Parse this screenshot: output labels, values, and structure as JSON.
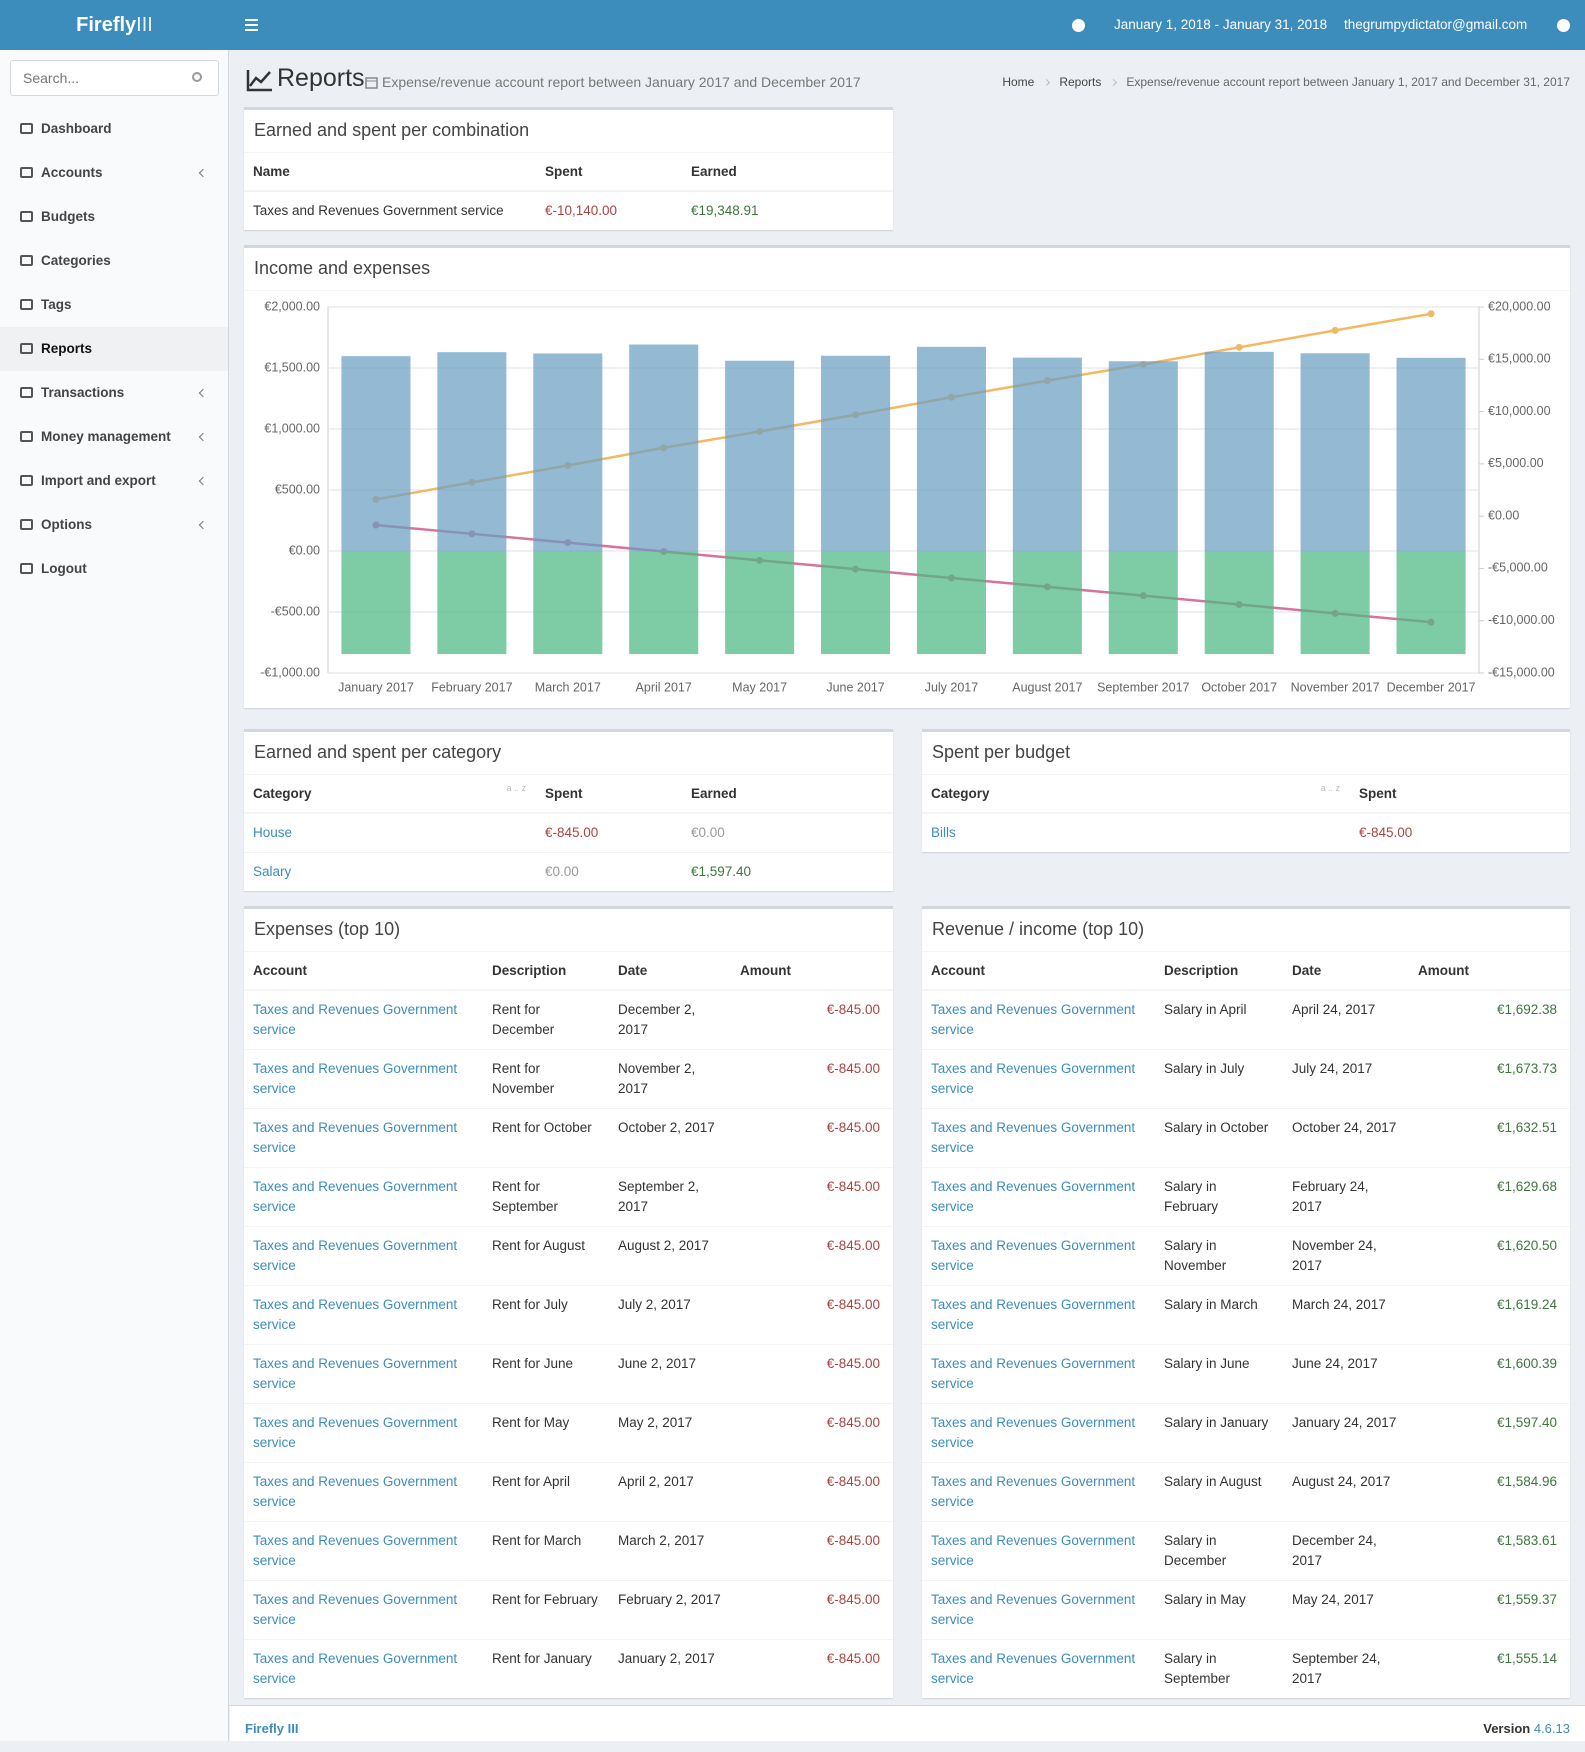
{
  "header": {
    "brand": "Firefly",
    "brand_suffix": "III",
    "date_range": "January 1, 2018 - January 31, 2018",
    "user": "thegrumpydictator@gmail.com"
  },
  "sidebar": {
    "search_placeholder": "Search...",
    "menu": [
      {
        "label": "Dashboard"
      },
      {
        "label": "Accounts",
        "submenu": true
      },
      {
        "label": "Budgets"
      },
      {
        "label": "Categories"
      },
      {
        "label": "Tags"
      },
      {
        "label": "Reports",
        "active": true
      },
      {
        "label": "Transactions",
        "submenu": true
      },
      {
        "label": "Money management",
        "submenu": true
      },
      {
        "label": "Import and export",
        "submenu": true
      },
      {
        "label": "Options",
        "submenu": true
      },
      {
        "label": "Logout"
      }
    ]
  },
  "page": {
    "title": "Reports",
    "subtitle": "Expense/revenue account report between January 2017 and December 2017",
    "breadcrumbs": [
      "Home",
      "Reports",
      "Expense/revenue account report between January 1, 2017 and December 31, 2017"
    ]
  },
  "combination": {
    "title": "Earned and spent per combination",
    "columns": [
      "Name",
      "Spent",
      "Earned"
    ],
    "rows": [
      [
        "Taxes and Revenues Government service",
        "€-10,140.00",
        "€19,348.91"
      ]
    ]
  },
  "chart_data": {
    "type": "bar",
    "title": "Income and expenses",
    "categories": [
      "January 2017",
      "February 2017",
      "March 2017",
      "April 2017",
      "May 2017",
      "June 2017",
      "July 2017",
      "August 2017",
      "September 2017",
      "October 2017",
      "November 2017",
      "December 2017"
    ],
    "series": [
      {
        "type": "bar",
        "color": "#6a9ec2",
        "values": [
          1597.4,
          1629.68,
          1619.24,
          1692.38,
          1559.37,
          1600.39,
          1673.73,
          1584.96,
          1555.14,
          1632.51,
          1620.5,
          1583.61
        ]
      },
      {
        "type": "bar",
        "color": "#4cb883",
        "values": [
          -845,
          -845,
          -845,
          -845,
          -845,
          -845,
          -845,
          -845,
          -845,
          -845,
          -845,
          -845
        ]
      },
      {
        "type": "line",
        "axis": "y2",
        "color": "#f2b965",
        "values": [
          1597.4,
          3227.08,
          4846.32,
          6538.7,
          8098.07,
          9698.46,
          11372.19,
          12957.15,
          14512.29,
          16144.8,
          17765.3,
          19348.91
        ]
      },
      {
        "type": "line",
        "axis": "y2",
        "color": "#d6749e",
        "values": [
          -845,
          -1690,
          -2535,
          -3380,
          -4225,
          -5070,
          -5915,
          -6760,
          -7605,
          -8450,
          -9295,
          -10140
        ]
      }
    ],
    "ylim": [
      -1000,
      2000
    ],
    "yticks": [
      {
        "value": -1000,
        "label": "-€1,000.00"
      },
      {
        "value": -500,
        "label": "-€500.00"
      },
      {
        "value": 0,
        "label": "€0.00"
      },
      {
        "value": 500,
        "label": "€500.00"
      },
      {
        "value": 1000,
        "label": "€1,000.00"
      },
      {
        "value": 1500,
        "label": "€1,500.00"
      },
      {
        "value": 2000,
        "label": "€2,000.00"
      }
    ],
    "y2lim": [
      -15000,
      20000
    ],
    "y2ticks": [
      {
        "value": -15000,
        "label": "-€15,000.00"
      },
      {
        "value": -10000,
        "label": "-€10,000.00"
      },
      {
        "value": -5000,
        "label": "-€5,000.00"
      },
      {
        "value": 0,
        "label": "€0.00"
      },
      {
        "value": 5000,
        "label": "€5,000.00"
      },
      {
        "value": 10000,
        "label": "€10,000.00"
      },
      {
        "value": 15000,
        "label": "€15,000.00"
      },
      {
        "value": 20000,
        "label": "€20,000.00"
      }
    ],
    "grid": true
  },
  "category_table": {
    "title": "Earned and spent per category",
    "columns": [
      "Category",
      "Spent",
      "Earned"
    ],
    "sort_hint": "a .. z",
    "rows": [
      [
        "House",
        "€-845.00",
        "€0.00"
      ],
      [
        "Salary",
        "€0.00",
        "€1,597.40"
      ]
    ]
  },
  "budget_table": {
    "title": "Spent per budget",
    "columns": [
      "Category",
      "Spent"
    ],
    "sort_hint": "a .. z",
    "rows": [
      [
        "Bills",
        "€-845.00"
      ]
    ]
  },
  "expenses": {
    "title": "Expenses (top 10)",
    "columns": [
      "Account",
      "Description",
      "Date",
      "Amount"
    ],
    "rows": [
      [
        "Taxes and Revenues Government service",
        "Rent for December",
        "December 2, 2017",
        "€-845.00"
      ],
      [
        "Taxes and Revenues Government service",
        "Rent for November",
        "November 2, 2017",
        "€-845.00"
      ],
      [
        "Taxes and Revenues Government service",
        "Rent for October",
        "October 2, 2017",
        "€-845.00"
      ],
      [
        "Taxes and Revenues Government service",
        "Rent for September",
        "September 2, 2017",
        "€-845.00"
      ],
      [
        "Taxes and Revenues Government service",
        "Rent for August",
        "August 2, 2017",
        "€-845.00"
      ],
      [
        "Taxes and Revenues Government service",
        "Rent for July",
        "July 2, 2017",
        "€-845.00"
      ],
      [
        "Taxes and Revenues Government service",
        "Rent for June",
        "June 2, 2017",
        "€-845.00"
      ],
      [
        "Taxes and Revenues Government service",
        "Rent for May",
        "May 2, 2017",
        "€-845.00"
      ],
      [
        "Taxes and Revenues Government service",
        "Rent for April",
        "April 2, 2017",
        "€-845.00"
      ],
      [
        "Taxes and Revenues Government service",
        "Rent for March",
        "March 2, 2017",
        "€-845.00"
      ],
      [
        "Taxes and Revenues Government service",
        "Rent for February",
        "February 2, 2017",
        "€-845.00"
      ],
      [
        "Taxes and Revenues Government service",
        "Rent for January",
        "January 2, 2017",
        "€-845.00"
      ]
    ]
  },
  "revenue": {
    "title": "Revenue / income (top 10)",
    "columns": [
      "Account",
      "Description",
      "Date",
      "Amount"
    ],
    "rows": [
      [
        "Taxes and Revenues Government service",
        "Salary in April",
        "April 24, 2017",
        "€1,692.38"
      ],
      [
        "Taxes and Revenues Government service",
        "Salary in July",
        "July 24, 2017",
        "€1,673.73"
      ],
      [
        "Taxes and Revenues Government service",
        "Salary in October",
        "October 24, 2017",
        "€1,632.51"
      ],
      [
        "Taxes and Revenues Government service",
        "Salary in February",
        "February 24, 2017",
        "€1,629.68"
      ],
      [
        "Taxes and Revenues Government service",
        "Salary in November",
        "November 24, 2017",
        "€1,620.50"
      ],
      [
        "Taxes and Revenues Government service",
        "Salary in March",
        "March 24, 2017",
        "€1,619.24"
      ],
      [
        "Taxes and Revenues Government service",
        "Salary in June",
        "June 24, 2017",
        "€1,600.39"
      ],
      [
        "Taxes and Revenues Government service",
        "Salary in January",
        "January 24, 2017",
        "€1,597.40"
      ],
      [
        "Taxes and Revenues Government service",
        "Salary in August",
        "August 24, 2017",
        "€1,584.96"
      ],
      [
        "Taxes and Revenues Government service",
        "Salary in December",
        "December 24, 2017",
        "€1,583.61"
      ],
      [
        "Taxes and Revenues Government service",
        "Salary in May",
        "May 24, 2017",
        "€1,559.37"
      ],
      [
        "Taxes and Revenues Government service",
        "Salary in September",
        "September 24, 2017",
        "€1,555.14"
      ]
    ]
  },
  "footer": {
    "brand": "Firefly III",
    "version_label": "Version",
    "version": "4.6.13"
  }
}
